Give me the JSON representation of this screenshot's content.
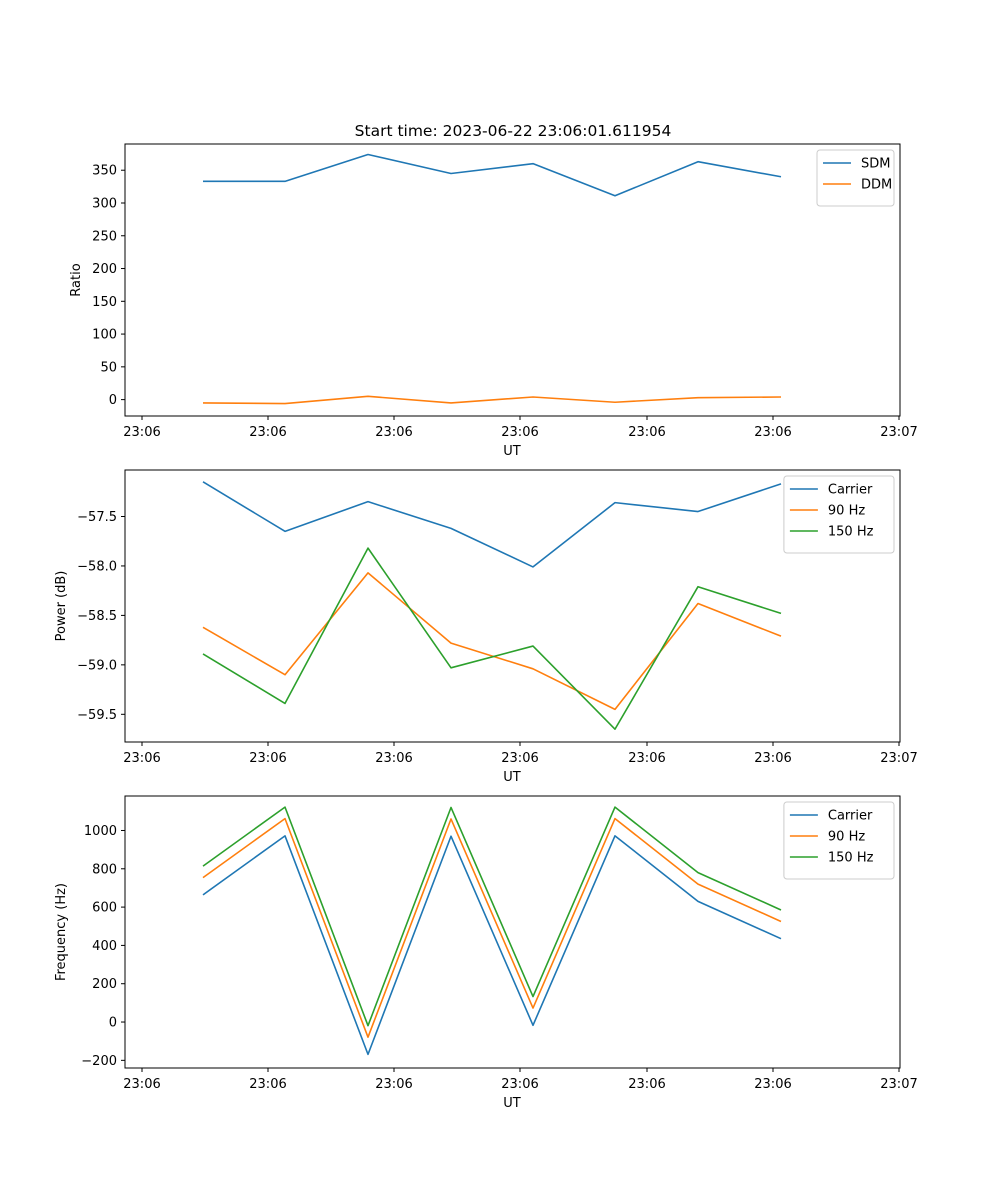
{
  "figure_title": "Start time: 2023-06-22 23:06:01.611954",
  "colors": {
    "blue": "#1f77b4",
    "orange": "#ff7f0e",
    "green": "#2ca02c"
  },
  "chart_data": [
    {
      "type": "line",
      "title": "Start time: 2023-06-22 23:06:01.611954",
      "xlabel": "UT",
      "ylabel": "Ratio",
      "xtick_labels": [
        "23:06",
        "23:06",
        "23:06",
        "23:06",
        "23:06",
        "23:06",
        "23:07"
      ],
      "ylim": [
        -25,
        390
      ],
      "yticks": [
        0,
        50,
        100,
        150,
        200,
        250,
        300,
        350
      ],
      "ytick_labels": [
        "0",
        "50",
        "100",
        "150",
        "200",
        "250",
        "300",
        "350"
      ],
      "legend_location": "upper right",
      "series": [
        {
          "name": "SDM",
          "color": "#1f77b4",
          "values": [
            333,
            333,
            374,
            345,
            360,
            311,
            363,
            340
          ]
        },
        {
          "name": "DDM",
          "color": "#ff7f0e",
          "values": [
            -5,
            -6,
            5,
            -5,
            4,
            -4,
            3,
            4
          ]
        }
      ]
    },
    {
      "type": "line",
      "xlabel": "UT",
      "ylabel": "Power (dB)",
      "xtick_labels": [
        "23:06",
        "23:06",
        "23:06",
        "23:06",
        "23:06",
        "23:06",
        "23:07"
      ],
      "ylim": [
        -59.78,
        -57.03
      ],
      "yticks": [
        -59.5,
        -59.0,
        -58.5,
        -58.0,
        -57.5
      ],
      "ytick_labels": [
        "−59.5",
        "−59.0",
        "−58.5",
        "−58.0",
        "−57.5"
      ],
      "legend_location": "upper right",
      "series": [
        {
          "name": "Carrier",
          "color": "#1f77b4",
          "values": [
            -57.15,
            -57.65,
            -57.35,
            -57.62,
            -58.01,
            -57.36,
            -57.45,
            -57.17
          ]
        },
        {
          "name": "90 Hz",
          "color": "#ff7f0e",
          "values": [
            -58.62,
            -59.1,
            -58.07,
            -58.78,
            -59.04,
            -59.45,
            -58.38,
            -58.71
          ]
        },
        {
          "name": "150 Hz",
          "color": "#2ca02c",
          "values": [
            -58.89,
            -59.39,
            -57.82,
            -59.03,
            -58.81,
            -59.65,
            -58.21,
            -58.48
          ]
        }
      ]
    },
    {
      "type": "line",
      "xlabel": "UT",
      "ylabel": "Frequency (Hz)",
      "xtick_labels": [
        "23:06",
        "23:06",
        "23:06",
        "23:06",
        "23:06",
        "23:06",
        "23:07"
      ],
      "ylim": [
        -240,
        1180
      ],
      "yticks": [
        -200,
        0,
        200,
        400,
        600,
        800,
        1000
      ],
      "ytick_labels": [
        "−200",
        "0",
        "200",
        "400",
        "600",
        "800",
        "1000"
      ],
      "legend_location": "upper right",
      "series": [
        {
          "name": "Carrier",
          "color": "#1f77b4",
          "values": [
            664,
            972,
            -169,
            970,
            -17,
            972,
            630,
            435
          ]
        },
        {
          "name": "90 Hz",
          "color": "#ff7f0e",
          "values": [
            754,
            1062,
            -79,
            1060,
            73,
            1062,
            720,
            525
          ]
        },
        {
          "name": "150 Hz",
          "color": "#2ca02c",
          "values": [
            814,
            1122,
            -19,
            1120,
            133,
            1122,
            780,
            585
          ]
        }
      ]
    }
  ]
}
